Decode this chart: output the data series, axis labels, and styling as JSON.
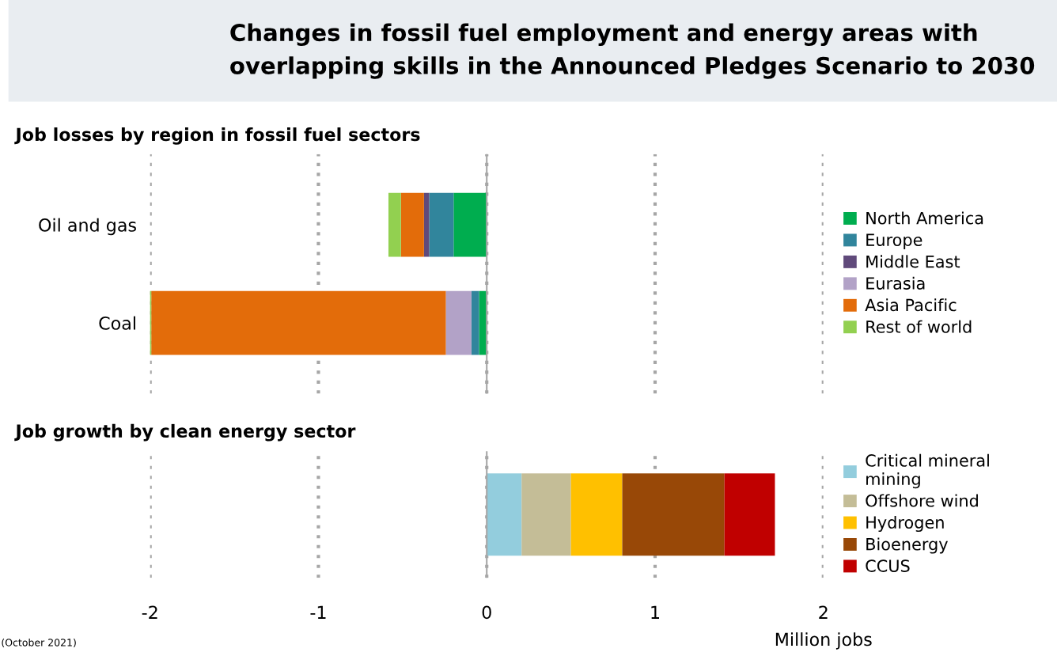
{
  "chart_data": [
    {
      "type": "bar",
      "orientation": "horizontal",
      "stacked": true,
      "title": "Changes in fossil fuel employment and energy areas with overlapping skills in the Announced Pledges Scenario to 2030",
      "subtitle": "Job losses by region in fossil fuel sectors",
      "categories": [
        "Oil and gas",
        "Coal"
      ],
      "xlim": [
        -2,
        2
      ],
      "xticks": [
        -2,
        -1,
        0,
        1,
        2
      ],
      "tick_labels": "y",
      "grid": "x",
      "legend": "right",
      "ref_lines": [
        {
          "axis": "x",
          "value": 0,
          "color": "#a6a6a6",
          "line_style": "solid"
        }
      ],
      "series": [
        {
          "name": "North America",
          "color": "#00ad4f",
          "values": [
            -0.197,
            -0.046
          ]
        },
        {
          "name": "Europe",
          "color": "#31859c",
          "values": [
            -0.145,
            -0.045
          ]
        },
        {
          "name": "Middle East",
          "color": "#604a7b",
          "values": [
            -0.031,
            0
          ]
        },
        {
          "name": "Eurasia",
          "color": "#b2a2c7",
          "values": [
            0,
            -0.152
          ]
        },
        {
          "name": "Asia Pacific",
          "color": "#e36c0a",
          "values": [
            -0.137,
            -1.75
          ]
        },
        {
          "name": "Rest of world",
          "color": "#92d050",
          "values": [
            -0.074,
            -0.01
          ]
        }
      ]
    },
    {
      "type": "bar",
      "orientation": "horizontal",
      "stacked": true,
      "subtitle": "Job growth by clean energy sector",
      "xlabel": "Million jobs",
      "categories": [
        null
      ],
      "xlim": [
        -2,
        2
      ],
      "xticks": [
        -2,
        -1,
        0,
        1,
        2
      ],
      "tick_labels": "x",
      "grid": "x",
      "legend": "right",
      "annotations": [
        "(October 2021)"
      ],
      "ref_lines": [
        {
          "axis": "x",
          "value": 0,
          "color": "#a6a6a6",
          "line_style": "solid"
        }
      ],
      "series": [
        {
          "name": "Critical mineral mining",
          "color": "#93cddd",
          "values": [
            0.207
          ]
        },
        {
          "name": "Offshore wind",
          "color": "#c4bd97",
          "values": [
            0.293
          ]
        },
        {
          "name": "Hydrogen",
          "color": "#ffc000",
          "values": [
            0.305
          ]
        },
        {
          "name": "Bioenergy",
          "color": "#984807",
          "values": [
            0.607
          ]
        },
        {
          "name": "CCUS",
          "color": "#c00000",
          "values": [
            0.3
          ]
        }
      ]
    }
  ]
}
